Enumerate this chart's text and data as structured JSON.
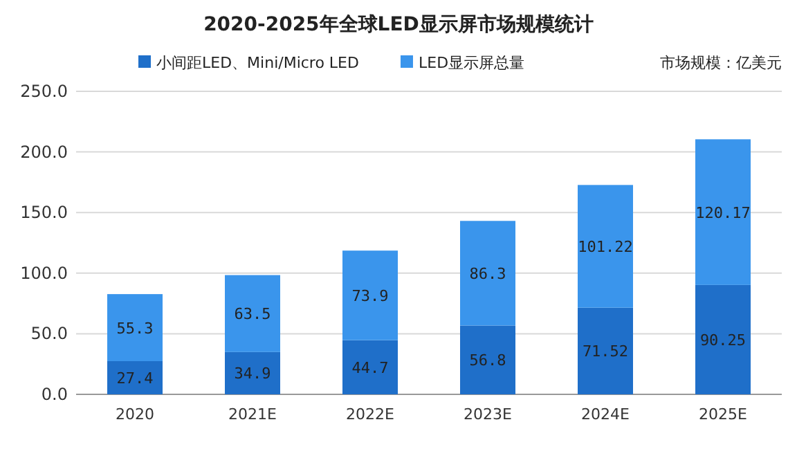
{
  "chart_data": {
    "type": "bar",
    "title": "2020-2025年全球LED显示屏市场规模统计",
    "categories": [
      "2020",
      "2021E",
      "2022E",
      "2023E",
      "2024E",
      "2025E"
    ],
    "series": [
      {
        "name": "小间距LED、Mini/Micro LED",
        "color": "#1f6fc9",
        "values": [
          27.4,
          34.9,
          44.7,
          56.8,
          71.52,
          90.25
        ]
      },
      {
        "name": "LED显示屏总量",
        "color": "#3a95ec",
        "values": [
          55.3,
          63.5,
          73.9,
          86.3,
          101.22,
          120.17
        ]
      }
    ],
    "stacked": true,
    "data_labels": true,
    "legend": "top",
    "grid": "y",
    "ylim": [
      0,
      250
    ],
    "yticks": [
      {
        "value": 0,
        "label": "0.0"
      },
      {
        "value": 50,
        "label": "50.0"
      },
      {
        "value": 100,
        "label": "100.0"
      },
      {
        "value": 150,
        "label": "150.0"
      },
      {
        "value": 200,
        "label": "200.0"
      },
      {
        "value": 250,
        "label": "250.0"
      }
    ],
    "annotations": [
      "市场规模：亿美元"
    ]
  }
}
